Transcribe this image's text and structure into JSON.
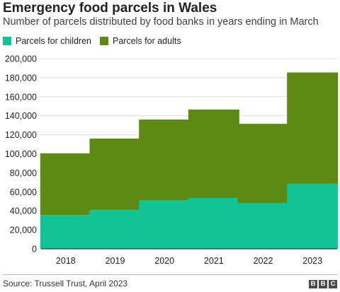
{
  "header": {
    "title": "Emergency food parcels in Wales",
    "subtitle": "Number of parcels distributed by food banks in years ending in March"
  },
  "footer": {
    "source": "Source: Trussell Trust, April 2023",
    "logo_letters": [
      "B",
      "B",
      "C"
    ]
  },
  "colors": {
    "children": "#10c493",
    "adults": "#5c8a13",
    "grid": "#dddddd",
    "axis": "#222222",
    "text": "#222222"
  },
  "chart_data": {
    "type": "bar",
    "stacked": true,
    "categories": [
      "2018",
      "2019",
      "2020",
      "2021",
      "2022",
      "2023"
    ],
    "series": [
      {
        "name": "Parcels for children",
        "values": [
          35500,
          41000,
          51000,
          53500,
          48000,
          68500
        ]
      },
      {
        "name": "Parcels for adults",
        "values": [
          65000,
          75000,
          85000,
          93000,
          83500,
          117000
        ]
      }
    ],
    "ylim": [
      0,
      200000
    ],
    "yticks": [
      0,
      20000,
      40000,
      60000,
      80000,
      100000,
      120000,
      140000,
      160000,
      180000,
      200000
    ],
    "ytick_labels": [
      "0",
      "20,000",
      "40,000",
      "60,000",
      "80,000",
      "100,000",
      "120,000",
      "140,000",
      "160,000",
      "180,000",
      "200,000"
    ],
    "grid": true,
    "legend_position": "top-left"
  }
}
